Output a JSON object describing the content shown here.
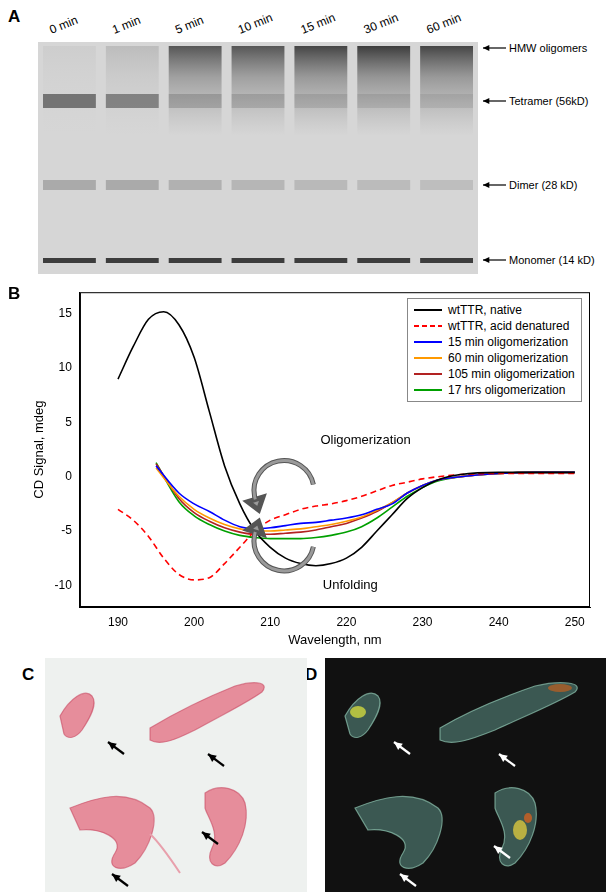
{
  "panel_labels": [
    "A",
    "B",
    "C",
    "D"
  ],
  "gel": {
    "lanes": [
      "0 min",
      "1 min",
      "5 min",
      "10 min",
      "15 min",
      "30 min",
      "60 min"
    ],
    "bands": [
      "HMW oligomers",
      "Tetramer (56kD)",
      "Dimer (28 kD)",
      "Monomer (14 kD)"
    ]
  },
  "chart_data": {
    "type": "line",
    "xlabel": "Wavelength, nm",
    "ylabel": "CD Signal, mdeg",
    "xlim": [
      185,
      252
    ],
    "xticks": [
      190,
      200,
      210,
      220,
      230,
      240,
      250
    ],
    "ylim": [
      -12,
      17
    ],
    "yticks": [
      -10,
      -5,
      0,
      5,
      10,
      15
    ],
    "grid": false,
    "legend": "upper right",
    "annotations": [
      "Oligomerization",
      "Unfolding"
    ],
    "series": [
      {
        "name": "wtTTR, native",
        "color": "#000000",
        "line_style": "solid",
        "x": [
          190,
          192,
          194,
          196,
          198,
          200,
          202,
          204,
          206,
          208,
          210,
          212,
          214,
          216,
          218,
          220,
          222,
          224,
          226,
          228,
          230,
          232,
          235,
          240,
          245,
          250
        ],
        "values": [
          9,
          12,
          14.5,
          15.2,
          14,
          11,
          6,
          1,
          -2.5,
          -5,
          -6.5,
          -7.5,
          -8,
          -8.2,
          -8,
          -7.5,
          -6.5,
          -5,
          -3.5,
          -2,
          -1,
          -0.3,
          0.2,
          0.4,
          0.4,
          0.4
        ]
      },
      {
        "name": "wtTTR, acid denatured",
        "color": "#ff0000",
        "line_style": "dashed",
        "x": [
          190,
          192,
          194,
          196,
          198,
          200,
          202,
          204,
          206,
          208,
          210,
          212,
          214,
          216,
          218,
          220,
          222,
          224,
          226,
          228,
          230,
          232,
          235,
          240,
          245,
          250
        ],
        "values": [
          -3,
          -4,
          -5.5,
          -7.5,
          -9,
          -9.5,
          -9.3,
          -8,
          -6.5,
          -5,
          -4,
          -3.5,
          -3,
          -2.7,
          -2.5,
          -2.2,
          -1.8,
          -1.3,
          -0.8,
          -0.5,
          -0.2,
          0,
          0.2,
          0.3,
          0.3,
          0.3
        ]
      },
      {
        "name": "15 min oligomerization",
        "color": "#0000ff",
        "line_style": "solid",
        "x": [
          195,
          198,
          200,
          202,
          204,
          206,
          208,
          210,
          212,
          214,
          216,
          218,
          220,
          222,
          224,
          226,
          228,
          230,
          232,
          235,
          240,
          245,
          250
        ],
        "values": [
          1,
          -1.5,
          -2.5,
          -3.2,
          -4,
          -4.6,
          -4.8,
          -4.7,
          -4.5,
          -4.3,
          -4.2,
          -4,
          -3.8,
          -3.5,
          -3,
          -2.5,
          -1.5,
          -0.8,
          -0.3,
          0,
          0.3,
          0.4,
          0.4
        ]
      },
      {
        "name": "60 min oligomerization",
        "color": "#ff9900",
        "line_style": "solid",
        "x": [
          195,
          198,
          200,
          202,
          204,
          206,
          208,
          210,
          212,
          214,
          216,
          218,
          220,
          222,
          224,
          226,
          228,
          230,
          232,
          235,
          240,
          245,
          250
        ],
        "values": [
          0.8,
          -1.8,
          -3,
          -3.8,
          -4.4,
          -4.8,
          -5,
          -5,
          -4.9,
          -4.8,
          -4.6,
          -4.4,
          -4.1,
          -3.7,
          -3.1,
          -2.4,
          -1.5,
          -0.8,
          -0.3,
          0,
          0.3,
          0.4,
          0.4
        ]
      },
      {
        "name": "105 min oligomerization",
        "color": "#b22222",
        "line_style": "solid",
        "x": [
          195,
          198,
          200,
          202,
          204,
          206,
          208,
          210,
          212,
          214,
          216,
          218,
          220,
          222,
          224,
          226,
          228,
          230,
          232,
          235,
          240,
          245,
          250
        ],
        "values": [
          1.2,
          -2,
          -3.3,
          -4.1,
          -4.7,
          -5.1,
          -5.3,
          -5.3,
          -5.2,
          -5.1,
          -4.9,
          -4.6,
          -4.3,
          -3.8,
          -3.2,
          -2.4,
          -1.5,
          -0.8,
          -0.3,
          0,
          0.3,
          0.4,
          0.4
        ]
      },
      {
        "name": "17 hrs oligomerization",
        "color": "#00a000",
        "line_style": "solid",
        "x": [
          195,
          198,
          200,
          202,
          204,
          206,
          208,
          210,
          212,
          214,
          216,
          218,
          220,
          222,
          224,
          226,
          228,
          230,
          232,
          235,
          240,
          245,
          250
        ],
        "values": [
          1.3,
          -2.3,
          -3.6,
          -4.4,
          -5,
          -5.4,
          -5.6,
          -5.7,
          -5.7,
          -5.7,
          -5.6,
          -5.4,
          -5.1,
          -4.6,
          -3.8,
          -2.8,
          -1.8,
          -1,
          -0.4,
          0,
          0.3,
          0.4,
          0.4
        ]
      }
    ]
  }
}
